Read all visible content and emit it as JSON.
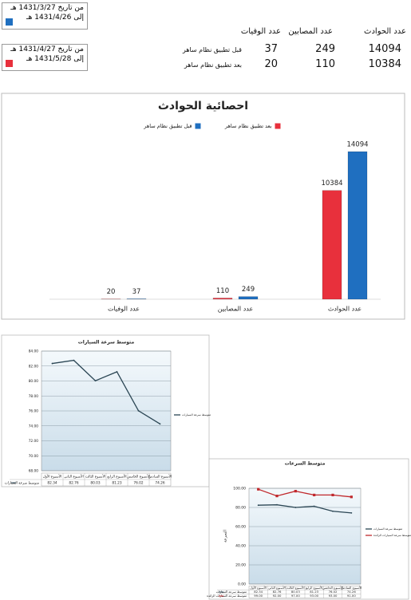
{
  "date_ranges": [
    {
      "from": "من تاريخ 1431/3/27 هـ",
      "to": "إلى 1431/4/26 هـ",
      "color": "#1f6fc0"
    },
    {
      "from": "من تاريخ 1431/4/27 هـ",
      "to": "إلى 1431/5/28 هـ",
      "color": "#e8303c"
    }
  ],
  "summary_table": {
    "headers": [
      "عدد الحوادث",
      "عدد المصابين",
      "عدد الوفيات"
    ],
    "rows": [
      {
        "label": "قبل تطبيق نظام ساهر",
        "values": [
          14094,
          249,
          37
        ]
      },
      {
        "label": "بعد تطبيق نظام ساهر",
        "values": [
          10384,
          110,
          20
        ]
      }
    ]
  },
  "chart_data": [
    {
      "type": "bar",
      "title": "احصائية الحوادث",
      "categories": [
        "عدد الوفيات",
        "عدد المصابين",
        "عدد الحوادث"
      ],
      "series": [
        {
          "name": "بعد تطبيق نظام ساهر",
          "color": "#e8303c",
          "values": [
            20,
            110,
            10384
          ]
        },
        {
          "name": "قبل تطبيق نظام ساهر",
          "color": "#1f6fc0",
          "values": [
            37,
            249,
            14094
          ]
        }
      ]
    },
    {
      "type": "line",
      "title": "متوسط سرعة السيارات",
      "categories": [
        "الأسبوع الأول",
        "الأسبوع الثاني",
        "الأسبوع الثالث",
        "الأسبوع الرابع",
        "الأسبوع الخامس",
        "الأسبوع السادس"
      ],
      "series": [
        {
          "name": "متوسط سرعة السيارات",
          "color": "#2b4654",
          "values": [
            82.34,
            82.76,
            80.03,
            81.23,
            76.02,
            74.26
          ]
        }
      ],
      "ylim": [
        68,
        84
      ],
      "yticks": [
        {
          "value": 68,
          "label": "68.00"
        },
        {
          "value": 70,
          "label": "70.00"
        },
        {
          "value": 72,
          "label": "72.00"
        },
        {
          "value": 74,
          "label": "74.00"
        },
        {
          "value": 76,
          "label": "76.00"
        },
        {
          "value": 78,
          "label": "78.00"
        },
        {
          "value": 80,
          "label": "80.00"
        },
        {
          "value": 82,
          "label": "82.00"
        },
        {
          "value": 84,
          "label": "84.00"
        }
      ],
      "grid": true
    },
    {
      "type": "line",
      "title": "متوسط السرعات",
      "y_label": "السرعة",
      "categories": [
        "الأسبوع الأول",
        "الأسبوع الثاني",
        "الأسبوع الثالث",
        "الأسبوع الرابع",
        "الأسبوع الخامس",
        "الأسبوع السادس"
      ],
      "series": [
        {
          "name": "متوسط سرعة السيارات",
          "color": "#2b4654",
          "values": [
            82.34,
            82.76,
            80.03,
            81.23,
            76.02,
            74.26
          ]
        },
        {
          "name": "متوسط سرعة السيارات الزائدة",
          "color": "#c0282c",
          "values": [
            99,
            92,
            97,
            93,
            93,
            91
          ],
          "value_labels": [
            "99.00",
            "92.00",
            "97.00",
            "93.00",
            "93.00",
            "91.00"
          ]
        }
      ],
      "ylim": [
        0,
        100
      ],
      "yticks": [
        {
          "value": 0,
          "label": "0.00"
        },
        {
          "value": 20,
          "label": "20.00"
        },
        {
          "value": 40,
          "label": "40.00"
        },
        {
          "value": 60,
          "label": "60.00"
        },
        {
          "value": 80,
          "label": "80.00"
        },
        {
          "value": 100,
          "label": "100.00"
        }
      ],
      "grid": true
    }
  ]
}
